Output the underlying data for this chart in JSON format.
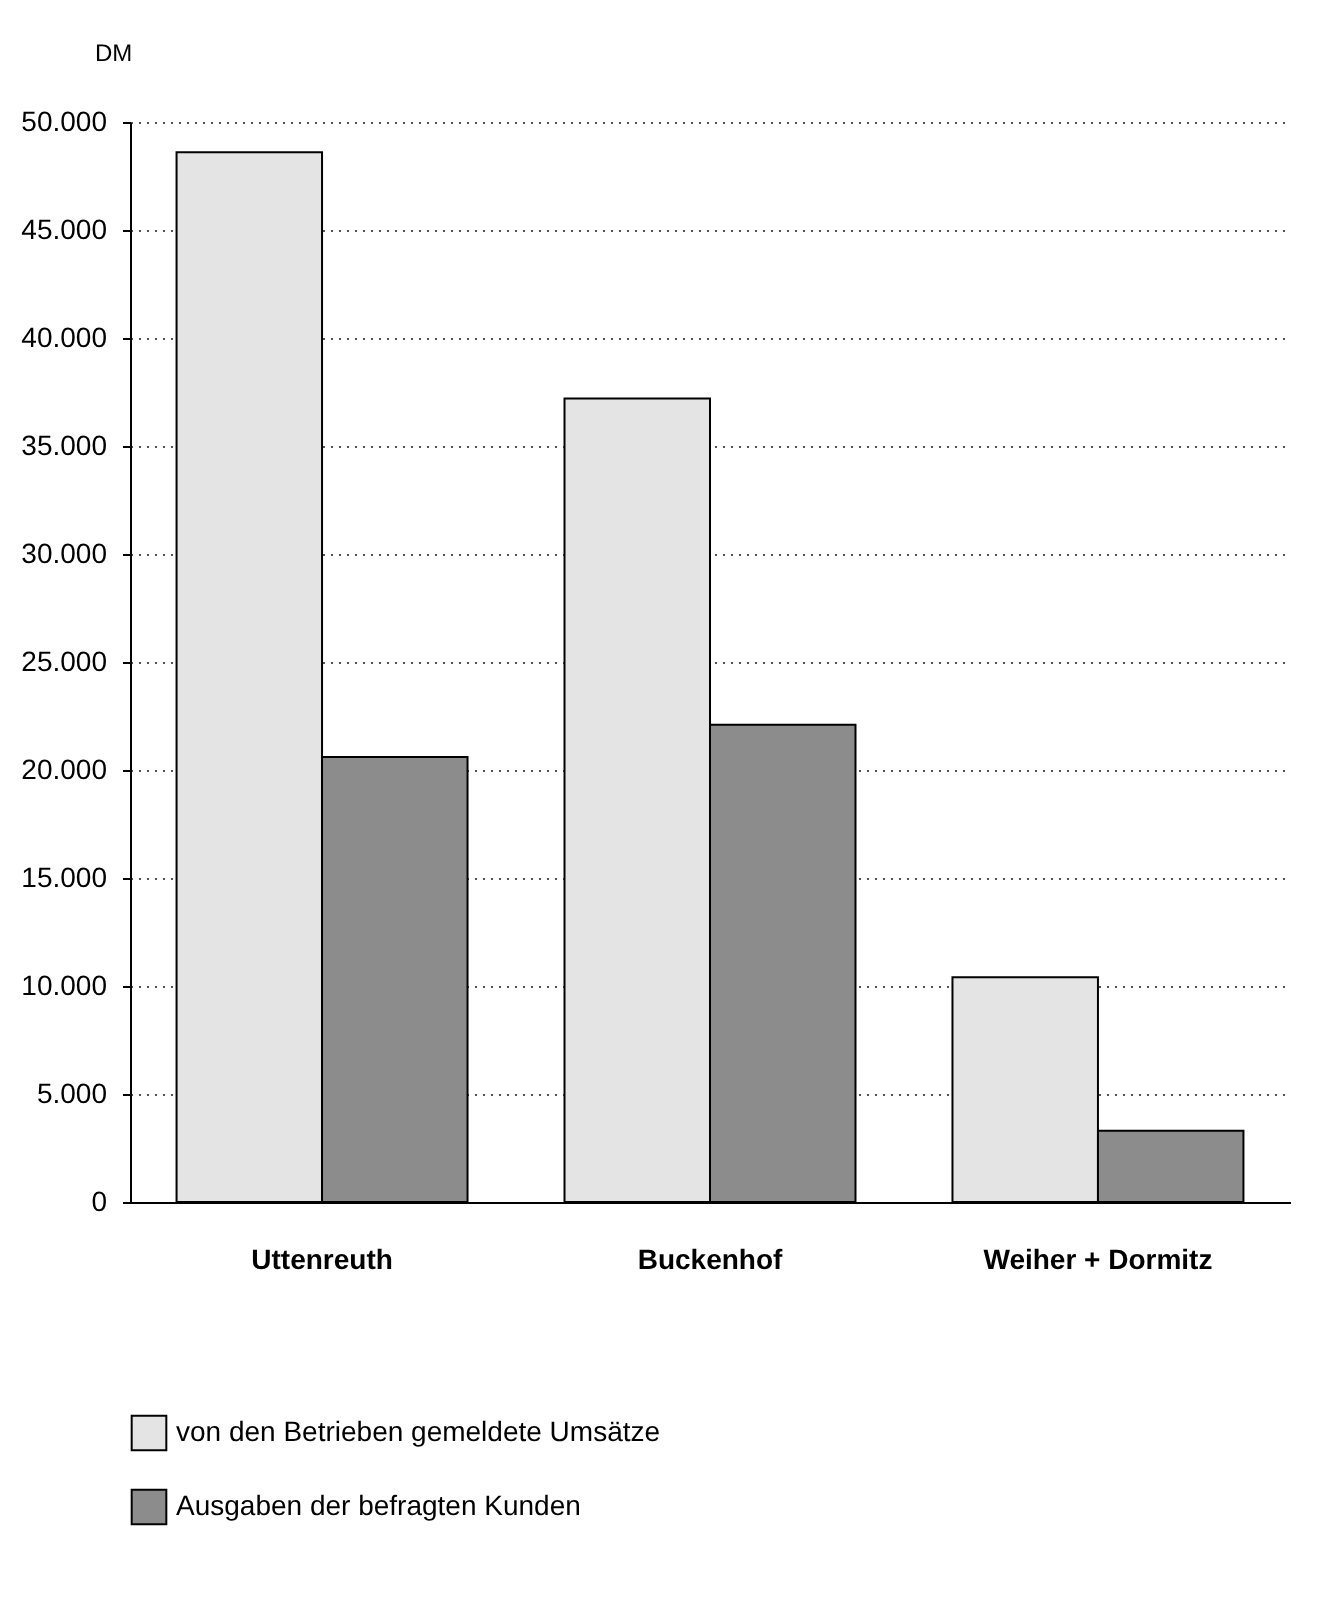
{
  "chart_data": {
    "type": "bar",
    "ylabel": "DM",
    "categories": [
      "Uttenreuth",
      "Buckenhof",
      "Weiher  +  Dormitz"
    ],
    "series": [
      {
        "name": "von den Betrieben gemeldete Umsätze",
        "color": "#e4e4e4",
        "values": [
          48600,
          37200,
          10400
        ]
      },
      {
        "name": "Ausgaben der befragten Kunden",
        "color": "#8c8c8c",
        "values": [
          20600,
          22100,
          3300
        ]
      }
    ],
    "ylim": [
      0,
      50000
    ],
    "yticks": [
      0,
      {
        "value": 5000,
        "label": "5.000"
      },
      {
        "value": 10000,
        "label": "10.000"
      },
      {
        "value": 15000,
        "label": "15.000"
      },
      {
        "value": 20000,
        "label": "20.000"
      },
      {
        "value": 25000,
        "label": "25.000"
      },
      {
        "value": 30000,
        "label": "30.000"
      },
      {
        "value": 35000,
        "label": "35.000"
      },
      {
        "value": 40000,
        "label": "40.000"
      },
      {
        "value": 45000,
        "label": "45.000"
      },
      {
        "value": 50000,
        "label": "50.000"
      }
    ],
    "grid": "y",
    "legend": "bottom"
  }
}
